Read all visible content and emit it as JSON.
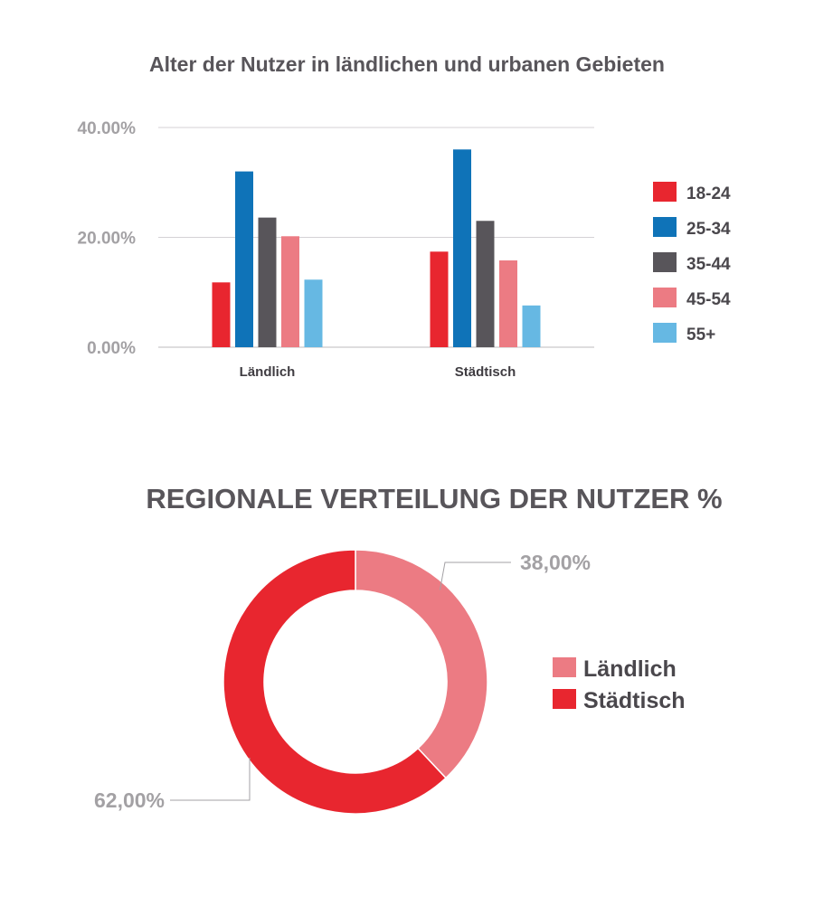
{
  "chart_data": [
    {
      "type": "bar",
      "title": "Alter der Nutzer in ländlichen und urbanen Gebieten",
      "xlabel": "",
      "ylabel": "",
      "categories": [
        "Ländlich",
        "Städtisch"
      ],
      "ylim": [
        0,
        40
      ],
      "yticks": [
        0,
        20,
        40
      ],
      "ytick_labels": [
        "0.00%",
        "20.00%",
        "40.00%"
      ],
      "grid": true,
      "legend_position": "right",
      "series": [
        {
          "name": "18-24",
          "values": [
            11.8,
            17.4
          ],
          "color": "#e8262f"
        },
        {
          "name": "25-34",
          "values": [
            32.0,
            36.0
          ],
          "color": "#0f73b8"
        },
        {
          "name": "35-44",
          "values": [
            23.6,
            23.0
          ],
          "color": "#58555a"
        },
        {
          "name": "45-54",
          "values": [
            20.2,
            15.8
          ],
          "color": "#ec7b83"
        },
        {
          "name": "55+",
          "values": [
            12.3,
            7.6
          ],
          "color": "#66b8e3"
        }
      ]
    },
    {
      "type": "pie",
      "title": "REGIONALE VERTEILUNG DER NUTZER %",
      "donut": true,
      "legend_position": "right",
      "slices": [
        {
          "name": "Ländlich",
          "value": 38,
          "label": "38,00%",
          "color": "#ec7b83"
        },
        {
          "name": "Städtisch",
          "value": 62,
          "label": "62,00%",
          "color": "#e8262f"
        }
      ]
    }
  ]
}
